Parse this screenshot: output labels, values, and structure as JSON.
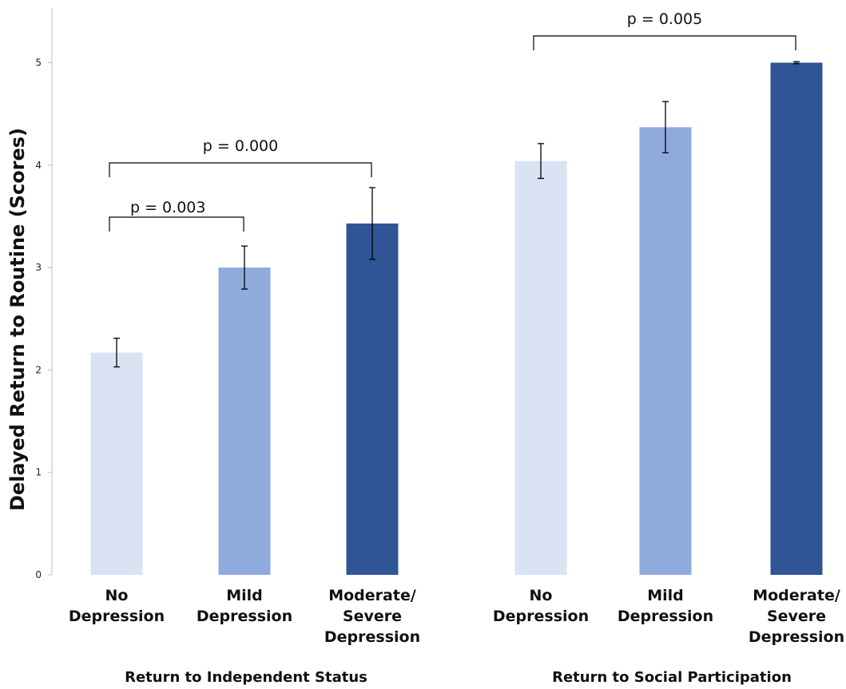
{
  "chart_data": {
    "type": "bar",
    "title": "",
    "ylabel": "Delayed Return to Routine  (Scores)",
    "ylim": [
      0,
      5
    ],
    "yticks": [
      "0",
      "1",
      "2",
      "3",
      "4",
      "5"
    ],
    "grid": false,
    "legend": "none",
    "colors": [
      "#dae3f3",
      "#8faadc",
      "#2f5597"
    ],
    "groups": [
      {
        "label": "Return to Independent Status",
        "categories": [
          [
            "No",
            "Depression"
          ],
          [
            "Mild",
            "Depression"
          ],
          [
            "Moderate/",
            "Severe",
            "Depression"
          ]
        ],
        "values": [
          2.17,
          3.0,
          3.43
        ],
        "errors": [
          0.14,
          0.21,
          0.35
        ]
      },
      {
        "label": "Return to Social Participation",
        "categories": [
          [
            "No",
            "Depression"
          ],
          [
            "Mild",
            "Depression"
          ],
          [
            "Moderate/",
            "Severe",
            "Depression"
          ]
        ],
        "values": [
          4.04,
          4.37,
          5.0
        ],
        "errors": [
          0.17,
          0.25,
          0.01
        ]
      }
    ],
    "annotations": [
      {
        "text": "p = 0.003",
        "group": 0,
        "from": 0,
        "to": 1
      },
      {
        "text": "p = 0.000",
        "group": 0,
        "from": 0,
        "to": 2
      },
      {
        "text": "p = 0.005",
        "group": 1,
        "from": 0,
        "to": 2
      }
    ]
  }
}
